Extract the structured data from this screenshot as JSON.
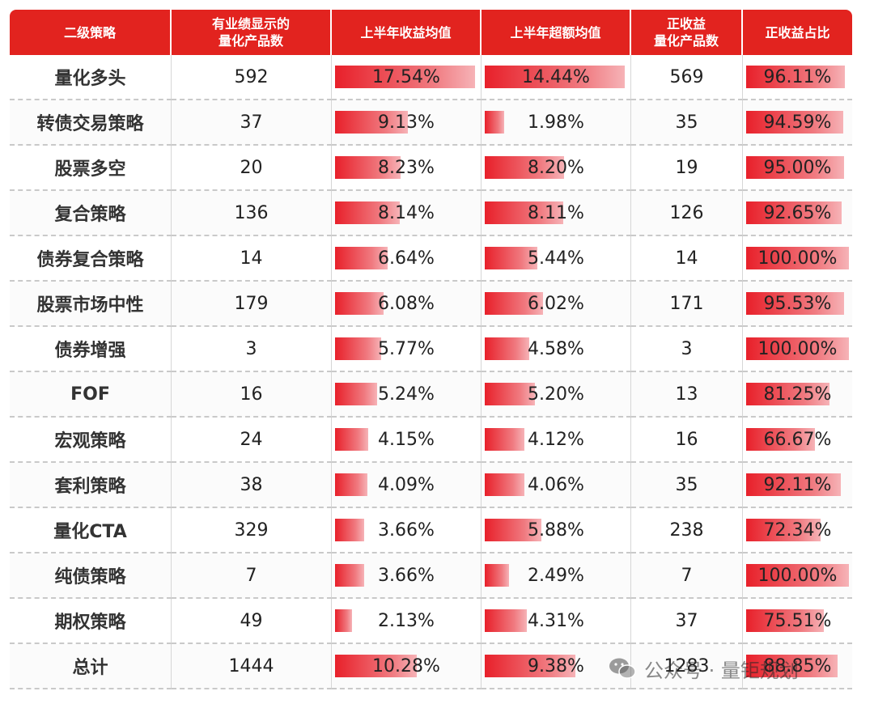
{
  "chart_data": {
    "type": "table",
    "columns": [
      "二级策略",
      "有业绩显示的量化产品数",
      "上半年收益均值",
      "上半年超额均值",
      "正收益量化产品数",
      "正收益占比"
    ],
    "header_lines": [
      [
        "二级策略"
      ],
      [
        "有业绩显示的",
        "量化产品数"
      ],
      [
        "上半年收益均值"
      ],
      [
        "上半年超额均值"
      ],
      [
        "正收益",
        "量化产品数"
      ],
      [
        "正收益占比"
      ]
    ],
    "rows": [
      {
        "strategy": "量化多头",
        "count": "592",
        "ret": "17.54%",
        "ret_v": 17.54,
        "excess": "14.44%",
        "excess_v": 14.44,
        "pos": "569",
        "ratio": "96.11%",
        "ratio_v": 96.11
      },
      {
        "strategy": "转债交易策略",
        "count": "37",
        "ret": "9.13%",
        "ret_v": 9.13,
        "excess": "1.98%",
        "excess_v": 1.98,
        "pos": "35",
        "ratio": "94.59%",
        "ratio_v": 94.59
      },
      {
        "strategy": "股票多空",
        "count": "20",
        "ret": "8.23%",
        "ret_v": 8.23,
        "excess": "8.20%",
        "excess_v": 8.2,
        "pos": "19",
        "ratio": "95.00%",
        "ratio_v": 95.0
      },
      {
        "strategy": "复合策略",
        "count": "136",
        "ret": "8.14%",
        "ret_v": 8.14,
        "excess": "8.11%",
        "excess_v": 8.11,
        "pos": "126",
        "ratio": "92.65%",
        "ratio_v": 92.65
      },
      {
        "strategy": "债券复合策略",
        "count": "14",
        "ret": "6.64%",
        "ret_v": 6.64,
        "excess": "5.44%",
        "excess_v": 5.44,
        "pos": "14",
        "ratio": "100.00%",
        "ratio_v": 100.0
      },
      {
        "strategy": "股票市场中性",
        "count": "179",
        "ret": "6.08%",
        "ret_v": 6.08,
        "excess": "6.02%",
        "excess_v": 6.02,
        "pos": "171",
        "ratio": "95.53%",
        "ratio_v": 95.53
      },
      {
        "strategy": "债券增强",
        "count": "3",
        "ret": "5.77%",
        "ret_v": 5.77,
        "excess": "4.58%",
        "excess_v": 4.58,
        "pos": "3",
        "ratio": "100.00%",
        "ratio_v": 100.0
      },
      {
        "strategy": "FOF",
        "count": "16",
        "ret": "5.24%",
        "ret_v": 5.24,
        "excess": "5.20%",
        "excess_v": 5.2,
        "pos": "13",
        "ratio": "81.25%",
        "ratio_v": 81.25
      },
      {
        "strategy": "宏观策略",
        "count": "24",
        "ret": "4.15%",
        "ret_v": 4.15,
        "excess": "4.12%",
        "excess_v": 4.12,
        "pos": "16",
        "ratio": "66.67%",
        "ratio_v": 66.67
      },
      {
        "strategy": "套利策略",
        "count": "38",
        "ret": "4.09%",
        "ret_v": 4.09,
        "excess": "4.06%",
        "excess_v": 4.06,
        "pos": "35",
        "ratio": "92.11%",
        "ratio_v": 92.11
      },
      {
        "strategy": "量化CTA",
        "count": "329",
        "ret": "3.66%",
        "ret_v": 3.66,
        "excess": "5.88%",
        "excess_v": 5.88,
        "pos": "238",
        "ratio": "72.34%",
        "ratio_v": 72.34
      },
      {
        "strategy": "纯债策略",
        "count": "7",
        "ret": "3.66%",
        "ret_v": 3.66,
        "excess": "2.49%",
        "excess_v": 2.49,
        "pos": "7",
        "ratio": "100.00%",
        "ratio_v": 100.0
      },
      {
        "strategy": "期权策略",
        "count": "49",
        "ret": "2.13%",
        "ret_v": 2.13,
        "excess": "4.31%",
        "excess_v": 4.31,
        "pos": "37",
        "ratio": "75.51%",
        "ratio_v": 75.51
      },
      {
        "strategy": "总计",
        "count": "1444",
        "ret": "10.28%",
        "ret_v": 10.28,
        "excess": "9.38%",
        "excess_v": 9.38,
        "pos": "1283",
        "ratio": "88.85%",
        "ratio_v": 88.85
      }
    ],
    "bar_color": "#e8202a",
    "header_color": "#e2231f"
  },
  "watermark": {
    "text": "公众号 · 量钜规划",
    "icon": "wechat-icon"
  }
}
